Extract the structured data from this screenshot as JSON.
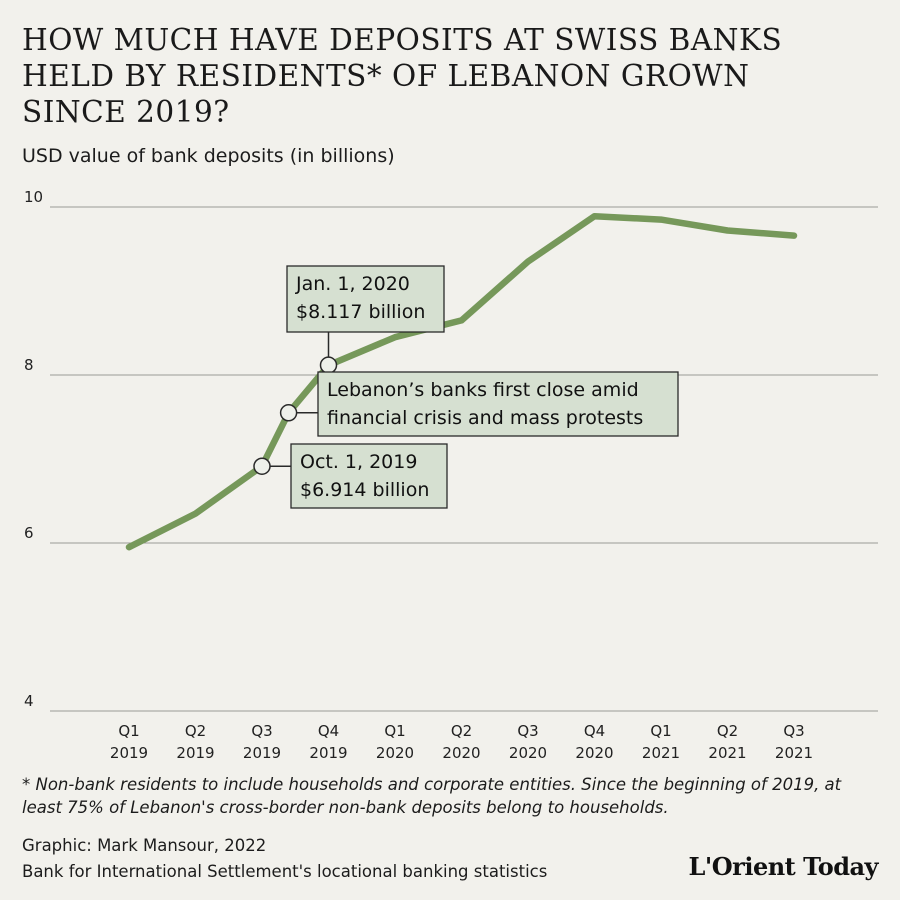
{
  "title": "HOW MUCH HAVE DEPOSITS AT SWISS BANKS HELD BY RESIDENTS* OF LEBANON GROWN SINCE 2019?",
  "subtitle": "USD value of bank deposits (in billions)",
  "footnote": "* Non-bank residents to include households and corporate entities. Since the beginning of 2019, at least 75% of Lebanon's cross-border non-bank deposits belong to households.",
  "credit": "Graphic: Mark Mansour, 2022",
  "source": "Bank for International Settlement's locational banking statistics",
  "logo": "L'Orient Today",
  "colors": {
    "line": "#76985a",
    "callout_bg": "#d6e0d1",
    "grid": "#9a9a96"
  },
  "chart_data": {
    "type": "line",
    "title": "HOW MUCH HAVE DEPOSITS AT SWISS BANKS HELD BY RESIDENTS* OF LEBANON GROWN SINCE 2019?",
    "ylabel": "USD value of bank deposits (in billions)",
    "xlabel": "",
    "ylim": [
      4,
      10
    ],
    "yticks": [
      4,
      6,
      8,
      10
    ],
    "grid": true,
    "legend": "none",
    "categories": [
      [
        "Q1",
        "2019"
      ],
      [
        "Q2",
        "2019"
      ],
      [
        "Q3",
        "2019"
      ],
      [
        "Q4",
        "2019"
      ],
      [
        "Q1",
        "2020"
      ],
      [
        "Q2",
        "2020"
      ],
      [
        "Q3",
        "2020"
      ],
      [
        "Q4",
        "2020"
      ],
      [
        "Q1",
        "2021"
      ],
      [
        "Q2",
        "2021"
      ],
      [
        "Q3",
        "2021"
      ]
    ],
    "series": [
      {
        "points": [
          {
            "x": 0,
            "y": 5.95
          },
          {
            "x": 1,
            "y": 6.35
          },
          {
            "x": 2,
            "y": 6.914
          },
          {
            "x": 2.4,
            "y": 7.55
          },
          {
            "x": 3,
            "y": 8.117
          },
          {
            "x": 4,
            "y": 8.45
          },
          {
            "x": 5,
            "y": 8.65
          },
          {
            "x": 6,
            "y": 9.35
          },
          {
            "x": 7,
            "y": 9.89
          },
          {
            "x": 8,
            "y": 9.85
          },
          {
            "x": 9,
            "y": 9.72
          },
          {
            "x": 10,
            "y": 9.66
          }
        ]
      }
    ],
    "annotations": [
      {
        "x": 3,
        "y": 8.117,
        "lines": [
          "Jan. 1, 2020",
          "$8.117 billion"
        ]
      },
      {
        "x": 2.4,
        "y": 7.55,
        "lines": [
          "Lebanon’s banks first close amid",
          "financial crisis and mass protests"
        ]
      },
      {
        "x": 2,
        "y": 6.914,
        "lines": [
          "Oct. 1, 2019",
          "$6.914 billion"
        ]
      }
    ]
  }
}
